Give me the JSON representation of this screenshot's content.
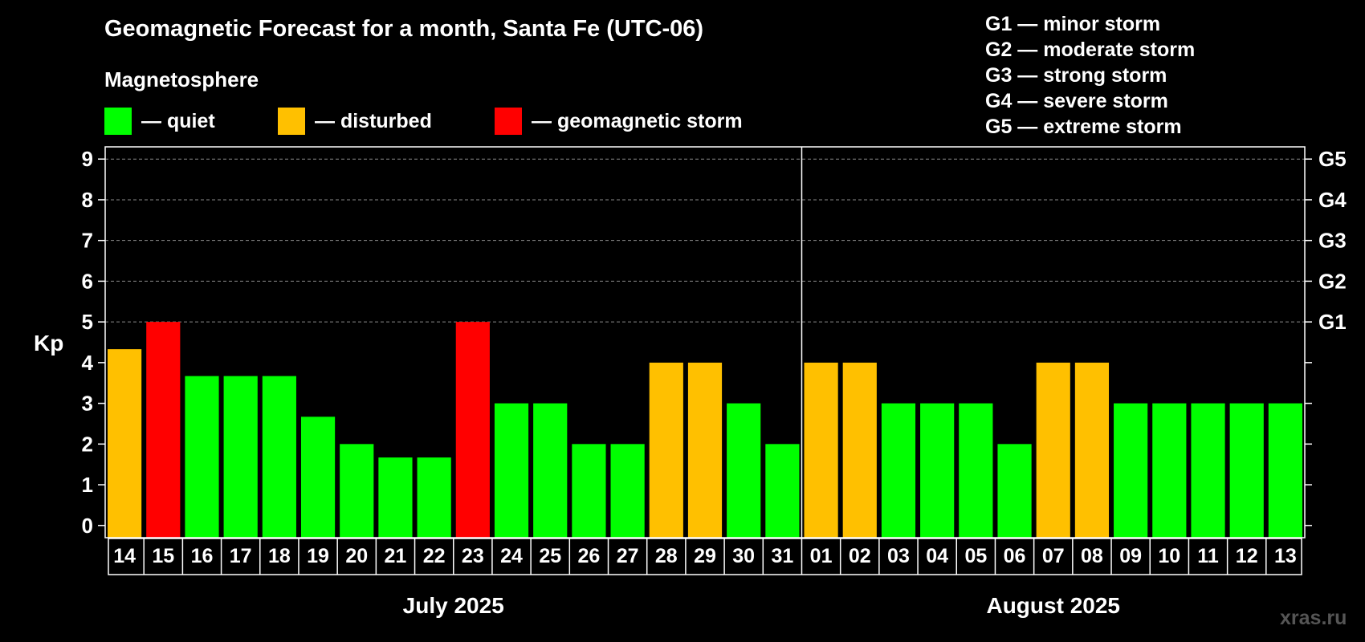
{
  "colors": {
    "quiet": "#00ff00",
    "disturbed": "#ffc000",
    "storm": "#ff0000",
    "background": "#000000",
    "watermark": "#555555"
  },
  "legend": {
    "title": "Magnetosphere",
    "items": [
      {
        "label": "— quiet",
        "color": "#00ff00"
      },
      {
        "label": "— disturbed",
        "color": "#ffc000"
      },
      {
        "label": "— geomagnetic storm",
        "color": "#ff0000"
      }
    ]
  },
  "storm_scale": [
    "G1 — minor storm",
    "G2 — moderate storm",
    "G3 — strong storm",
    "G4 — severe storm",
    "G5 — extreme storm"
  ],
  "watermark": "xras.ru",
  "chart_data": {
    "type": "bar",
    "title": "Geomagnetic Forecast for a month, Santa Fe (UTC-06)",
    "ylabel": "Kp",
    "ylim": [
      -0.3,
      9.3
    ],
    "yticks": [
      "0",
      "1",
      "2",
      "3",
      "4",
      "5",
      "6",
      "7",
      "8",
      "9"
    ],
    "right_axis": [
      {
        "value": 5,
        "label": "G1"
      },
      {
        "value": 6,
        "label": "G2"
      },
      {
        "value": 7,
        "label": "G3"
      },
      {
        "value": 8,
        "label": "G4"
      },
      {
        "value": 9,
        "label": "G5"
      }
    ],
    "grid": "dashed horizontal at Kp 5-9",
    "months": [
      {
        "label": "July 2025",
        "days": 18
      },
      {
        "label": "August 2025",
        "days": 13
      }
    ],
    "categories": [
      "14",
      "15",
      "16",
      "17",
      "18",
      "19",
      "20",
      "21",
      "22",
      "23",
      "24",
      "25",
      "26",
      "27",
      "28",
      "29",
      "30",
      "31",
      "01",
      "02",
      "03",
      "04",
      "05",
      "06",
      "07",
      "08",
      "09",
      "10",
      "11",
      "12",
      "13"
    ],
    "values": [
      4.33,
      5,
      3.67,
      3.67,
      3.67,
      2.67,
      2,
      1.67,
      1.67,
      5,
      3,
      3,
      2,
      2,
      4,
      4,
      3,
      2,
      4,
      4,
      3,
      3,
      3,
      2,
      4,
      4,
      3,
      3,
      3,
      3,
      3
    ],
    "levels": [
      "disturbed",
      "storm",
      "quiet",
      "quiet",
      "quiet",
      "quiet",
      "quiet",
      "quiet",
      "quiet",
      "storm",
      "quiet",
      "quiet",
      "quiet",
      "quiet",
      "disturbed",
      "disturbed",
      "quiet",
      "quiet",
      "disturbed",
      "disturbed",
      "quiet",
      "quiet",
      "quiet",
      "quiet",
      "disturbed",
      "disturbed",
      "quiet",
      "quiet",
      "quiet",
      "quiet",
      "quiet"
    ]
  }
}
